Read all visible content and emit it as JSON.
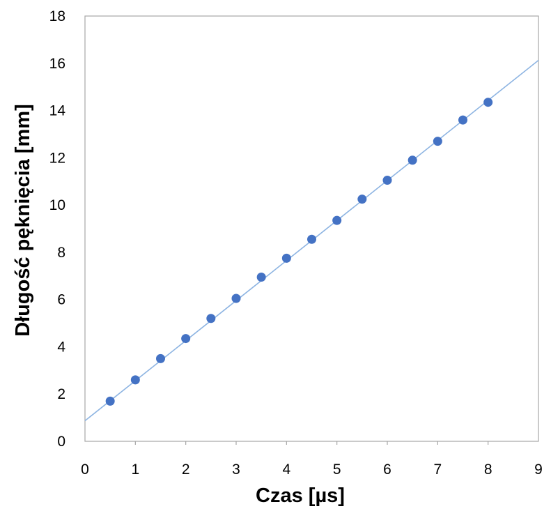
{
  "chart_data": {
    "type": "scatter",
    "title": "",
    "xlabel": "Czas [µs]",
    "ylabel": "Długość pęknięcia [mm]",
    "xlim": [
      0,
      9
    ],
    "ylim": [
      0,
      18
    ],
    "xticks": [
      0,
      1,
      2,
      3,
      4,
      5,
      6,
      7,
      8,
      9
    ],
    "yticks": [
      0,
      2,
      4,
      6,
      8,
      10,
      12,
      14,
      16,
      18
    ],
    "grid": false,
    "legend": "none",
    "series": [
      {
        "x": [
          0.5,
          1.0,
          1.5,
          2.0,
          2.5,
          3.0,
          3.5,
          4.0,
          4.5,
          5.0,
          5.5,
          6.0,
          6.5,
          7.0,
          7.5,
          8.0
        ],
        "y": [
          1.7,
          2.6,
          3.5,
          4.35,
          5.2,
          6.05,
          6.95,
          7.75,
          8.55,
          9.35,
          10.25,
          11.05,
          11.9,
          12.7,
          13.6,
          14.35
        ],
        "marker_color": "#4472C4"
      }
    ],
    "trendline": {
      "type": "linear",
      "slope": 1.695,
      "intercept": 0.87,
      "x_range": [
        0,
        9
      ],
      "color": "#8DB4E2"
    }
  }
}
